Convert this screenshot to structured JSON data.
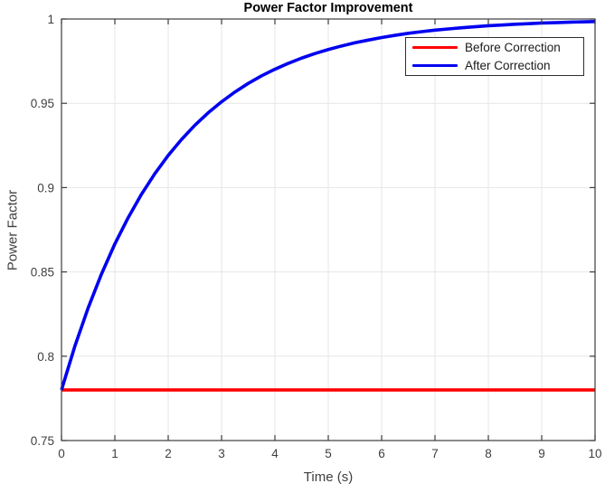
{
  "chart_data": {
    "type": "line",
    "title": "Power Factor Improvement",
    "xlabel": "Time (s)",
    "ylabel": "Power Factor",
    "xlim": [
      0,
      10
    ],
    "ylim": [
      0.75,
      1
    ],
    "xticks": [
      0,
      1,
      2,
      3,
      4,
      5,
      6,
      7,
      8,
      9,
      10
    ],
    "xtick_labels": [
      "0",
      "1",
      "2",
      "3",
      "4",
      "5",
      "6",
      "7",
      "8",
      "9",
      "10"
    ],
    "yticks": [
      0.75,
      0.8,
      0.85,
      0.9,
      0.95,
      1
    ],
    "ytick_labels": [
      "0.75",
      "0.8",
      "0.85",
      "0.9",
      "0.95",
      "1"
    ],
    "grid": true,
    "grid_color": "#e6e6e6",
    "axis_color": "#3c3c3c",
    "legend_position": "top-right",
    "series": [
      {
        "name": "Before Correction",
        "color": "#ff0000",
        "line_width": 3.6,
        "x": [
          0,
          10
        ],
        "y": [
          0.78,
          0.78
        ]
      },
      {
        "name": "After Correction",
        "color": "#0000f0",
        "line_width": 3.6,
        "x": [
          0,
          0.25,
          0.5,
          0.75,
          1,
          1.25,
          1.5,
          1.75,
          2,
          2.25,
          2.5,
          2.75,
          3,
          3.25,
          3.5,
          3.75,
          4,
          4.25,
          4.5,
          4.75,
          5,
          5.25,
          5.5,
          5.75,
          6,
          6.25,
          6.5,
          6.75,
          7,
          7.25,
          7.5,
          7.75,
          8,
          8.25,
          8.5,
          8.75,
          9,
          9.25,
          9.5,
          9.75,
          10
        ],
        "y": [
          0.78,
          0.8059,
          0.8287,
          0.8488,
          0.8666,
          0.8822,
          0.8961,
          0.9083,
          0.9191,
          0.9286,
          0.937,
          0.9444,
          0.9509,
          0.9567,
          0.9618,
          0.9663,
          0.9702,
          0.9737,
          0.9768,
          0.9795,
          0.9819,
          0.984,
          0.9859,
          0.9875,
          0.989,
          0.9903,
          0.9915,
          0.9925,
          0.9934,
          0.9941,
          0.9948,
          0.9954,
          0.996,
          0.9964,
          0.9969,
          0.9972,
          0.9976,
          0.9978,
          0.9981,
          0.9983,
          0.9985
        ]
      }
    ]
  }
}
